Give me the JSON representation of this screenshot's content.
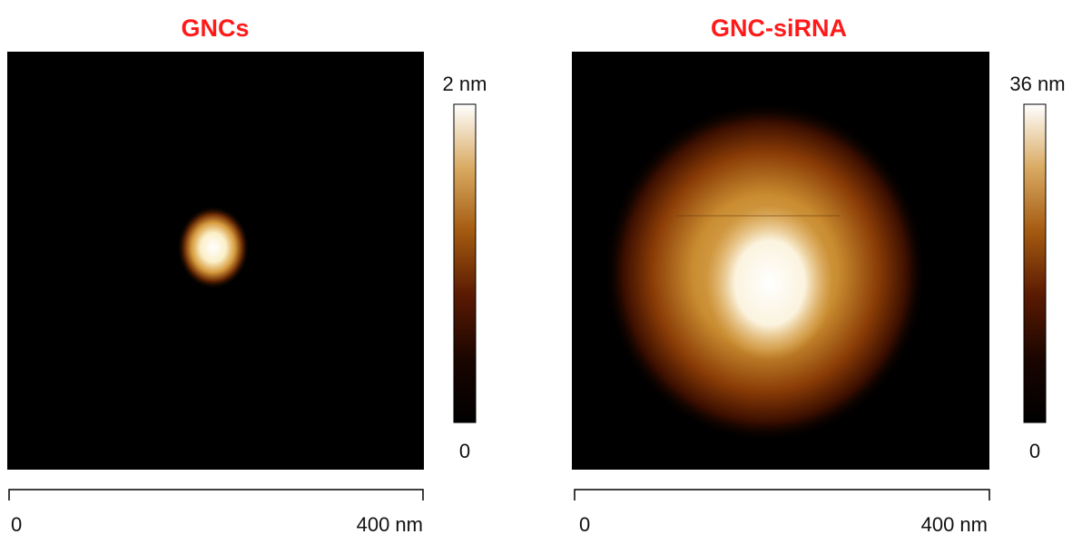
{
  "panels": [
    {
      "title": "GNCs",
      "colorbar": {
        "max_label": "2 nm",
        "min_label": "0"
      },
      "scale_bar": {
        "start_label": "0",
        "end_label": "400 nm"
      }
    },
    {
      "title": "GNC-siRNA",
      "colorbar": {
        "max_label": "36 nm",
        "min_label": "0"
      },
      "scale_bar": {
        "start_label": "0",
        "end_label": "400 nm"
      }
    }
  ]
}
